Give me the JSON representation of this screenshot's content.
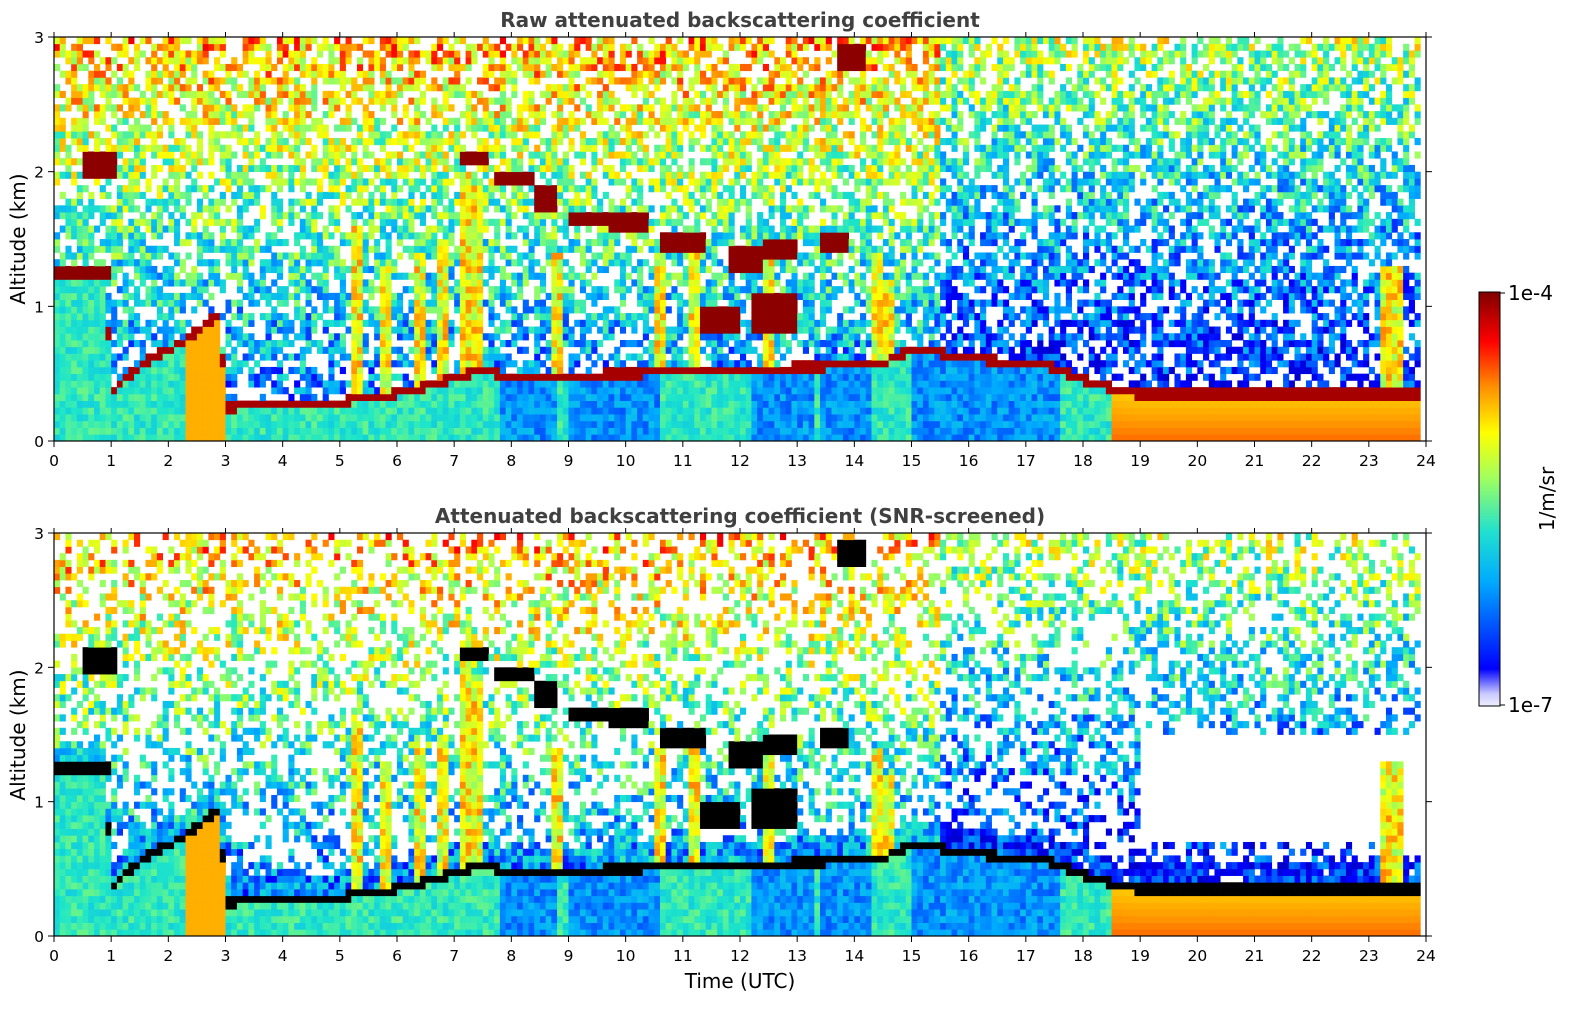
{
  "chart_data": [
    {
      "type": "heatmap",
      "title": "Raw attenuated backscattering coefficient",
      "ylabel": "Altitude (km)",
      "xlabel": "",
      "xlim": [
        0,
        24
      ],
      "ylim": [
        0,
        3
      ],
      "x_ticks": [
        "0",
        "1",
        "2",
        "3",
        "4",
        "5",
        "6",
        "7",
        "8",
        "9",
        "10",
        "11",
        "12",
        "13",
        "14",
        "15",
        "16",
        "17",
        "18",
        "19",
        "20",
        "21",
        "22",
        "23",
        "24"
      ],
      "y_ticks": [
        "0",
        "1",
        "2",
        "3"
      ],
      "screened": false,
      "features": [
        {
          "name": "boundary layer top",
          "points": [
            [
              0.9,
              0.4
            ],
            [
              1.2,
              0.5
            ],
            [
              1.6,
              0.62
            ],
            [
              2.0,
              0.72
            ],
            [
              2.3,
              0.78
            ],
            [
              2.7,
              0.9
            ],
            [
              2.9,
              0.95
            ],
            [
              3.0,
              0.25
            ],
            [
              4.0,
              0.28
            ],
            [
              5.0,
              0.3
            ],
            [
              6.0,
              0.35
            ],
            [
              7.0,
              0.45
            ],
            [
              7.5,
              0.55
            ],
            [
              15.0,
              0.7
            ],
            [
              15.5,
              0.65
            ],
            [
              16.5,
              0.6
            ],
            [
              17.5,
              0.55
            ],
            [
              18.0,
              0.45
            ],
            [
              19.0,
              0.38
            ],
            [
              20.0,
              0.35
            ],
            [
              22.0,
              0.35
            ],
            [
              23.8,
              0.35
            ]
          ]
        },
        {
          "name": "cloud layers",
          "points": [
            [
              0.5,
              2.05
            ],
            [
              1.1,
              2.05
            ],
            [
              0.3,
              1.25
            ],
            [
              1.0,
              1.25
            ],
            [
              7.3,
              2.1
            ],
            [
              7.8,
              2.0
            ],
            [
              8.2,
              1.85
            ],
            [
              9.0,
              1.65
            ],
            [
              9.8,
              1.65
            ],
            [
              10.3,
              1.62
            ],
            [
              11.0,
              1.5
            ],
            [
              11.4,
              1.45
            ],
            [
              12.0,
              1.35
            ],
            [
              12.8,
              1.42
            ],
            [
              13.5,
              1.5
            ],
            [
              14.0,
              2.85
            ]
          ]
        }
      ]
    },
    {
      "type": "heatmap",
      "title": "Attenuated backscattering coefficient (SNR-screened)",
      "ylabel": "Altitude (km)",
      "xlabel": "Time (UTC)",
      "xlim": [
        0,
        24
      ],
      "ylim": [
        0,
        3
      ],
      "x_ticks": [
        "0",
        "1",
        "2",
        "3",
        "4",
        "5",
        "6",
        "7",
        "8",
        "9",
        "10",
        "11",
        "12",
        "13",
        "14",
        "15",
        "16",
        "17",
        "18",
        "19",
        "20",
        "21",
        "22",
        "23",
        "24"
      ],
      "y_ticks": [
        "0",
        "1",
        "2",
        "3"
      ],
      "screened": true
    }
  ],
  "colorbar": {
    "label": "1/m/sr",
    "max_label": "1e-4",
    "min_label": "1e-7",
    "colormap": "jet",
    "scale": "log",
    "range": [
      1e-07,
      0.0001
    ],
    "colors": [
      "#f0f0ff",
      "#0000ff",
      "#00c0ff",
      "#40ffc0",
      "#ffff00",
      "#ff8000",
      "#ff0000",
      "#800000"
    ]
  }
}
